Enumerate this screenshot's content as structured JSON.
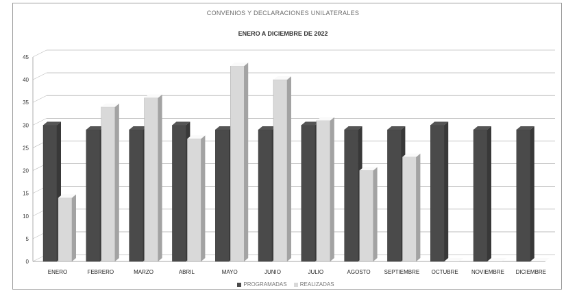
{
  "colors": {
    "programadas": "#4a4a4a",
    "realizadas": "#d9d9d9"
  },
  "chart_data": {
    "type": "bar",
    "title": "CONVENIOS Y DECLARACIONES UNILATERALES",
    "subtitle": "ENERO A DICIEMBRE DE 2022",
    "categories": [
      "ENERO",
      "FEBRERO",
      "MARZO",
      "ABRIL",
      "MAYO",
      "JUNIO",
      "JULIO",
      "AGOSTO",
      "SEPTIEMBRE",
      "OCTUBRE",
      "NOVIEMBRE",
      "DICIEMBRE"
    ],
    "series": [
      {
        "name": "PROGRAMADAS",
        "values": [
          30,
          29,
          29,
          30,
          29,
          29,
          30,
          29,
          29,
          30,
          29,
          29
        ]
      },
      {
        "name": "REALIZADAS",
        "values": [
          14,
          34,
          36,
          27,
          43,
          40,
          31,
          20,
          23,
          0,
          0,
          0
        ]
      }
    ],
    "ylim": [
      0,
      45
    ],
    "yticks": [
      0,
      5,
      10,
      15,
      20,
      25,
      30,
      35,
      40,
      45
    ],
    "grid": true,
    "legend_position": "bottom"
  }
}
